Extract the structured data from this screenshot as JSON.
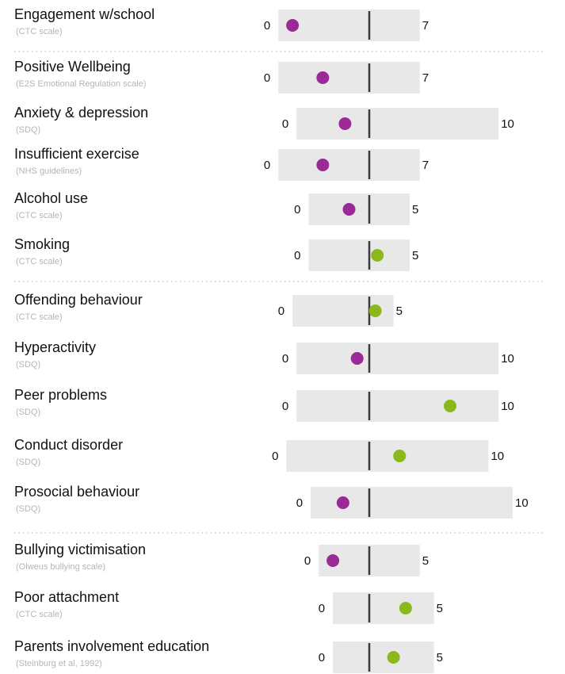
{
  "colors": {
    "bar_bg": "#e8e8e8",
    "center_line": "#3a3a3a",
    "dot_purple": "#9b2a97",
    "dot_green": "#8cb81b",
    "divider": "#c8c8c8"
  },
  "chart_data": {
    "type": "scatter",
    "title": "",
    "dividers_after_rows": [
      0,
      5,
      10
    ],
    "rows": [
      {
        "label": "Engagement w/school",
        "scale": "(CTC scale)",
        "min": 0,
        "max": 7,
        "mid": 4.5,
        "value": 0.7,
        "color": "purple"
      },
      {
        "label": "Positive Wellbeing",
        "scale": "(E2S Emotional Regulation scale)",
        "min": 0,
        "max": 7,
        "mid": 4.5,
        "value": 2.2,
        "color": "purple"
      },
      {
        "label": "Anxiety & depression",
        "scale": "(SDQ)",
        "min": 0,
        "max": 10,
        "mid": 3.6,
        "value": 2.4,
        "color": "purple"
      },
      {
        "label": "Insufficient exercise",
        "scale": "(NHS guidelines)",
        "min": 0,
        "max": 7,
        "mid": 4.5,
        "value": 2.2,
        "color": "purple"
      },
      {
        "label": "Alcohol use",
        "scale": "(CTC scale)",
        "min": 0,
        "max": 5,
        "mid": 3.0,
        "value": 2.0,
        "color": "purple"
      },
      {
        "label": "Smoking",
        "scale": "(CTC scale)",
        "min": 0,
        "max": 5,
        "mid": 3.0,
        "value": 3.4,
        "color": "green"
      },
      {
        "label": "Offending behaviour",
        "scale": "(CTC scale)",
        "min": 0,
        "max": 5,
        "mid": 3.8,
        "value": 4.1,
        "color": "green"
      },
      {
        "label": "Hyperactivity",
        "scale": "(SDQ)",
        "min": 0,
        "max": 10,
        "mid": 3.6,
        "value": 3.0,
        "color": "purple"
      },
      {
        "label": "Peer problems",
        "scale": "(SDQ)",
        "min": 0,
        "max": 10,
        "mid": 3.6,
        "value": 7.6,
        "color": "green"
      },
      {
        "label": "Conduct disorder",
        "scale": "(SDQ)",
        "min": 0,
        "max": 10,
        "mid": 4.1,
        "value": 5.6,
        "color": "green"
      },
      {
        "label": "Prosocial behaviour",
        "scale": "(SDQ)",
        "min": 0,
        "max": 10,
        "mid": 2.9,
        "value": 1.6,
        "color": "purple"
      },
      {
        "label": "Bullying victimisation",
        "scale": "(Olweus bullying scale)",
        "min": 0,
        "max": 5,
        "mid": 2.5,
        "value": 0.7,
        "color": "purple"
      },
      {
        "label": "Poor attachment",
        "scale": "(CTC scale)",
        "min": 0,
        "max": 5,
        "mid": 1.8,
        "value": 3.6,
        "color": "green"
      },
      {
        "label": "Parents involvement education",
        "scale": "(Steinburg et al, 1992)",
        "min": 0,
        "max": 5,
        "mid": 1.8,
        "value": 3.0,
        "color": "green"
      }
    ]
  }
}
